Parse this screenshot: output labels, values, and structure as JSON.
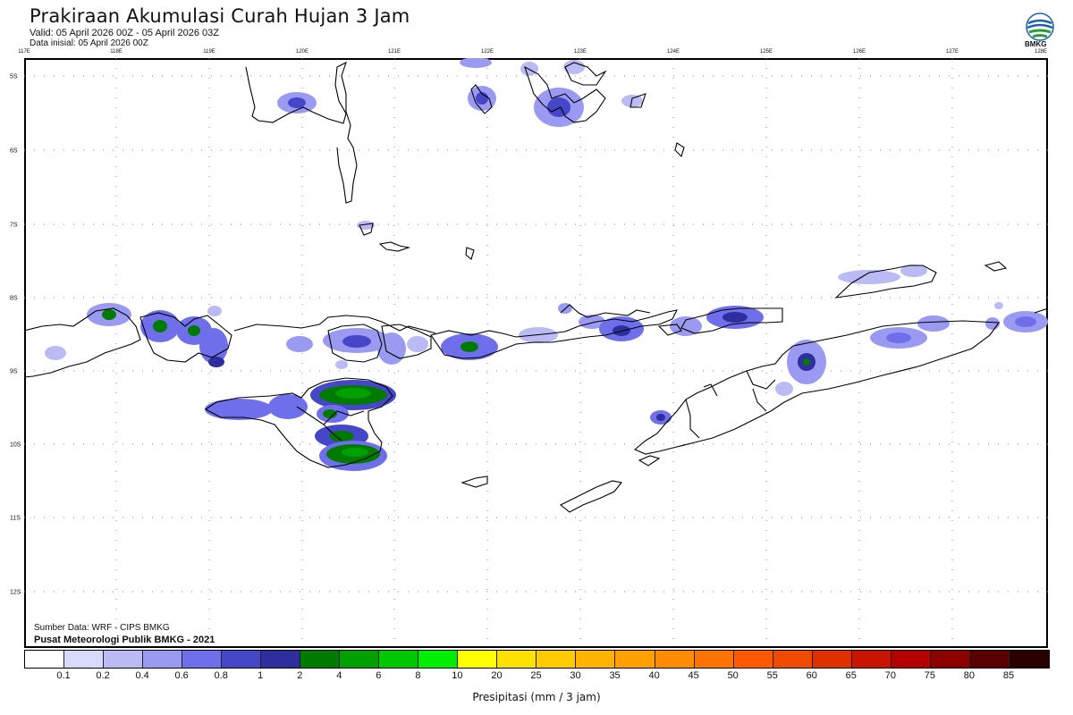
{
  "header": {
    "title": "Prakiraan Akumulasi Curah Hujan 3 Jam",
    "valid": "Valid: 05 April 2026 00Z - 05 April 2026 03Z",
    "initial": "Data inisial: 05 April 2026 00Z",
    "logo_text": "BMKG"
  },
  "axes": {
    "lon_labels": [
      "117E",
      "118E",
      "119E",
      "120E",
      "121E",
      "122E",
      "123E",
      "124E",
      "125E",
      "126E",
      "127E",
      "128E"
    ],
    "lat_labels": [
      "5S",
      "6S",
      "7S",
      "8S",
      "9S",
      "10S",
      "11S",
      "12S"
    ]
  },
  "footer": {
    "source": "Sumber Data: WRF - CIPS BMKG",
    "credit": "Pusat Meteorologi Publik BMKG - 2021"
  },
  "colorbar": {
    "title": "Presipitasi (mm / 3 jam)",
    "tick_labels": [
      "0.1",
      "0.2",
      "0.4",
      "0.6",
      "0.8",
      "1",
      "2",
      "4",
      "6",
      "8",
      "10",
      "20",
      "25",
      "30",
      "35",
      "40",
      "45",
      "50",
      "55",
      "60",
      "65",
      "70",
      "75",
      "80",
      "85"
    ],
    "colors": [
      "#ffffff",
      "#d9d9fb",
      "#babaf5",
      "#9a9af2",
      "#6f6feb",
      "#4646c9",
      "#2e2e9f",
      "#007a00",
      "#00a000",
      "#00c800",
      "#00ee00",
      "#ffff00",
      "#ffe100",
      "#ffcc00",
      "#ffb300",
      "#ffa000",
      "#ff8c00",
      "#ff7300",
      "#ff5a00",
      "#f04a00",
      "#e03000",
      "#c81400",
      "#b40000",
      "#8c0000",
      "#5a0000",
      "#2d0000"
    ]
  }
}
